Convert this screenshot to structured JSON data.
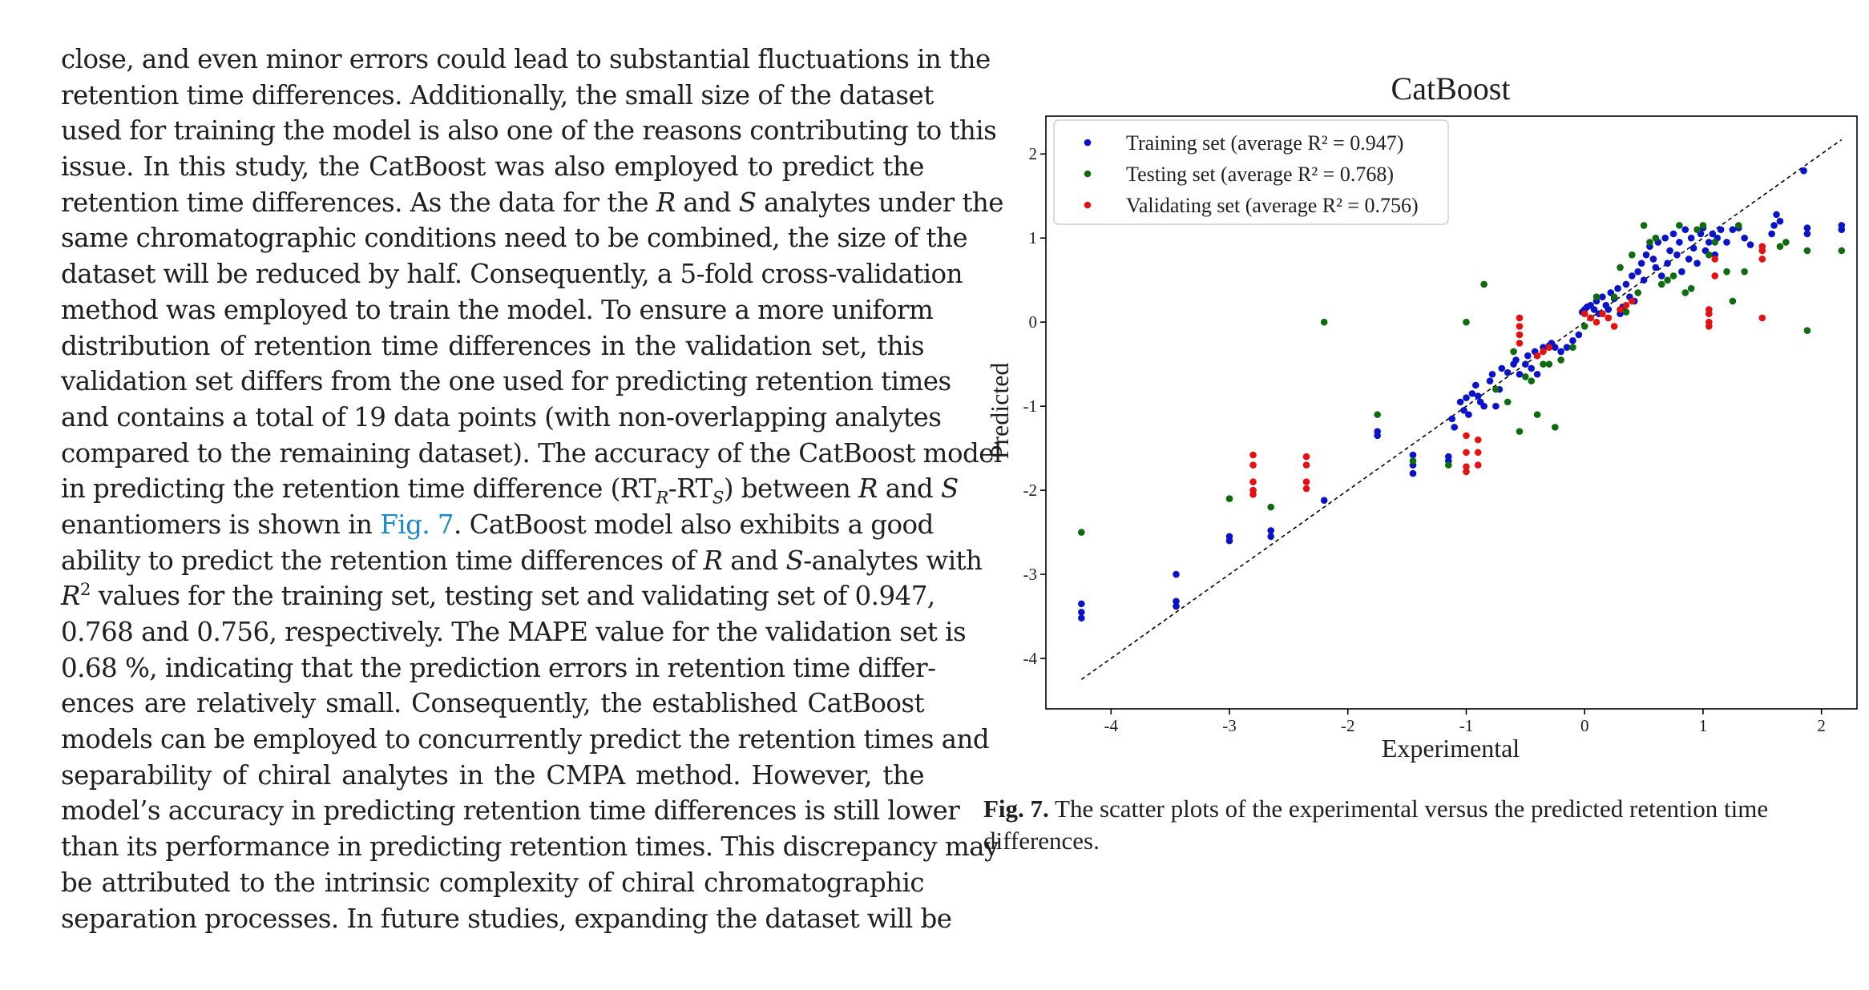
{
  "body_text": {
    "l1": "close, and even minor errors could lead to substantial fluctuations in the",
    "l2": "retention time differences. Additionally, the small size of the dataset",
    "l3": "used for training the model is also one of the reasons contributing to this",
    "l4": "issue. In this study, the CatBoost was also employed to predict the",
    "l5a": "retention time differences. As the data for the ",
    "l5b": "R",
    "l5c": " and ",
    "l5d": "S",
    "l5e": " analytes under the",
    "l6": "same chromatographic conditions need to be combined, the size of the",
    "l7": "dataset will be reduced by half. Consequently, a 5-fold cross-validation",
    "l8": "method was employed to train the model. To ensure a more uniform",
    "l9": "distribution of retention time differences in the validation set, this",
    "l10": "validation set differs from the one used for predicting retention times",
    "l11": "and contains a total of 19 data points (with non-overlapping analytes",
    "l12": "compared to the remaining dataset). The accuracy of the CatBoost model",
    "l13a": "in predicting the retention time difference (RT",
    "l13b": "R",
    "l13c": "-RT",
    "l13d": "S",
    "l13e": ") between ",
    "l13f": "R",
    "l13g": " and ",
    "l13h": "S",
    "l14a": "enantiomers is shown in ",
    "l14link": "Fig. 7",
    "l14b": ". CatBoost model also exhibits a good",
    "l15a": "ability to predict the retention time differences of ",
    "l15b": "R",
    "l15c": " and ",
    "l15d": "S",
    "l15e": "-analytes with",
    "l16a": "R",
    "l16b": "2",
    "l16c": " values for the training set, testing set and validating set of 0.947,",
    "l17": "0.768 and 0.756, respectively. The MAPE value for the validation set is",
    "l18": "0.68 %, indicating that the prediction errors in retention time differ-",
    "l19": "ences are relatively small. Consequently, the established CatBoost",
    "l20": "models can be employed to concurrently predict the retention times and",
    "l21": "separability of chiral analytes in the CMPA method. However, the",
    "l22": "model’s accuracy in predicting retention time differences is still lower",
    "l23": "than its performance in predicting retention times. This discrepancy may",
    "l24": "be attributed to the intrinsic complexity of chiral chromatographic",
    "l25": "separation processes. In future studies, expanding the dataset will be"
  },
  "caption": {
    "label": "Fig. 7.",
    "text": "  The scatter plots of the experimental versus the predicted retention time differences."
  },
  "chart_data": {
    "type": "scatter",
    "title": "CatBoost",
    "xlabel": "Experimental",
    "ylabel": "Predicted",
    "xlim": [
      -4.55,
      2.3
    ],
    "ylim": [
      -4.6,
      2.45
    ],
    "xticks": [
      -4,
      -3,
      -2,
      -1,
      0,
      1,
      2
    ],
    "yticks": [
      -4,
      -3,
      -2,
      -1,
      0,
      1,
      2
    ],
    "xtick_labels": [
      "-4",
      "-3",
      "-2",
      "-1",
      "0",
      "1",
      "2"
    ],
    "ytick_labels": [
      "-4",
      "-3",
      "-2",
      "-1",
      "0",
      "1",
      "2"
    ],
    "grid": false,
    "legend_position": "top-left",
    "reference_line": {
      "x": [
        -4.25,
        2.17
      ],
      "y": [
        -4.25,
        2.17
      ],
      "style": "dashed",
      "color": "#000000"
    },
    "series": [
      {
        "name": "Training set (average R² = 0.947)",
        "color": "#0a13c8",
        "points": [
          [
            -4.25,
            -3.35
          ],
          [
            -4.25,
            -3.45
          ],
          [
            -4.25,
            -3.52
          ],
          [
            -3.45,
            -3.0
          ],
          [
            -3.45,
            -3.32
          ],
          [
            -3.45,
            -3.38
          ],
          [
            -3.0,
            -2.55
          ],
          [
            -3.0,
            -2.6
          ],
          [
            -2.65,
            -2.48
          ],
          [
            -2.65,
            -2.55
          ],
          [
            -2.2,
            -2.12
          ],
          [
            -1.75,
            -1.3
          ],
          [
            -1.75,
            -1.35
          ],
          [
            -1.45,
            -1.58
          ],
          [
            -1.45,
            -1.7
          ],
          [
            -1.45,
            -1.8
          ],
          [
            -1.15,
            -1.6
          ],
          [
            -1.15,
            -1.65
          ],
          [
            -1.12,
            -1.15
          ],
          [
            -1.1,
            -1.25
          ],
          [
            -1.05,
            -0.95
          ],
          [
            -1.02,
            -1.05
          ],
          [
            -1.0,
            -0.9
          ],
          [
            -0.98,
            -1.1
          ],
          [
            -0.95,
            -0.85
          ],
          [
            -0.92,
            -0.75
          ],
          [
            -0.9,
            -0.88
          ],
          [
            -0.88,
            -0.95
          ],
          [
            -0.85,
            -1.0
          ],
          [
            -0.8,
            -0.7
          ],
          [
            -0.78,
            -0.62
          ],
          [
            -0.75,
            -1.0
          ],
          [
            -0.72,
            -0.8
          ],
          [
            -0.7,
            -0.55
          ],
          [
            -0.65,
            -0.6
          ],
          [
            -0.6,
            -0.5
          ],
          [
            -0.58,
            -0.45
          ],
          [
            -0.55,
            -0.62
          ],
          [
            -0.5,
            -0.5
          ],
          [
            -0.48,
            -0.4
          ],
          [
            -0.45,
            -0.55
          ],
          [
            -0.42,
            -0.35
          ],
          [
            -0.4,
            -0.62
          ],
          [
            -0.35,
            -0.3
          ],
          [
            -0.3,
            -0.28
          ],
          [
            -0.28,
            -0.25
          ],
          [
            -0.25,
            -0.3
          ],
          [
            -0.2,
            -0.35
          ],
          [
            -0.15,
            -0.3
          ],
          [
            -0.1,
            -0.22
          ],
          [
            -0.05,
            -0.15
          ],
          [
            -0.02,
            0.12
          ],
          [
            0.0,
            0.15
          ],
          [
            0.02,
            0.18
          ],
          [
            0.05,
            0.2
          ],
          [
            0.08,
            0.15
          ],
          [
            0.1,
            0.25
          ],
          [
            0.12,
            0.1
          ],
          [
            0.15,
            0.3
          ],
          [
            0.18,
            0.2
          ],
          [
            0.2,
            0.15
          ],
          [
            0.22,
            0.35
          ],
          [
            0.25,
            0.28
          ],
          [
            0.28,
            0.4
          ],
          [
            0.3,
            0.1
          ],
          [
            0.32,
            0.18
          ],
          [
            0.35,
            0.45
          ],
          [
            0.38,
            0.3
          ],
          [
            0.4,
            0.55
          ],
          [
            0.42,
            0.25
          ],
          [
            0.45,
            0.6
          ],
          [
            0.48,
            0.7
          ],
          [
            0.5,
            0.5
          ],
          [
            0.52,
            0.8
          ],
          [
            0.55,
            0.9
          ],
          [
            0.58,
            0.75
          ],
          [
            0.6,
            0.65
          ],
          [
            0.62,
            0.95
          ],
          [
            0.65,
            0.55
          ],
          [
            0.68,
            1.0
          ],
          [
            0.7,
            0.7
          ],
          [
            0.72,
            0.85
          ],
          [
            0.75,
            1.05
          ],
          [
            0.78,
            0.8
          ],
          [
            0.8,
            0.95
          ],
          [
            0.82,
            0.6
          ],
          [
            0.85,
            1.1
          ],
          [
            0.88,
            0.75
          ],
          [
            0.9,
            1.0
          ],
          [
            0.92,
            0.88
          ],
          [
            0.95,
            0.7
          ],
          [
            0.98,
            1.05
          ],
          [
            1.0,
            1.12
          ],
          [
            1.02,
            0.85
          ],
          [
            1.05,
            0.95
          ],
          [
            1.08,
            1.05
          ],
          [
            1.1,
            0.8
          ],
          [
            1.12,
            1.0
          ],
          [
            1.15,
            1.1
          ],
          [
            1.2,
            0.95
          ],
          [
            1.25,
            1.1
          ],
          [
            1.3,
            1.12
          ],
          [
            1.35,
            1.0
          ],
          [
            1.4,
            0.92
          ],
          [
            1.58,
            1.05
          ],
          [
            1.6,
            1.15
          ],
          [
            1.62,
            1.28
          ],
          [
            1.65,
            1.2
          ],
          [
            1.85,
            1.8
          ],
          [
            1.88,
            1.12
          ],
          [
            1.88,
            1.05
          ],
          [
            2.17,
            1.15
          ],
          [
            2.17,
            1.1
          ]
        ]
      },
      {
        "name": "Testing set (average R² = 0.768)",
        "color": "#0f6b0f",
        "points": [
          [
            -4.25,
            -2.5
          ],
          [
            -3.0,
            -2.1
          ],
          [
            -2.65,
            -2.2
          ],
          [
            -2.2,
            0.0
          ],
          [
            -1.75,
            -1.1
          ],
          [
            -1.45,
            -1.65
          ],
          [
            -1.15,
            -1.7
          ],
          [
            -1.0,
            0.0
          ],
          [
            -0.85,
            0.45
          ],
          [
            -0.75,
            -0.8
          ],
          [
            -0.65,
            -0.95
          ],
          [
            -0.6,
            -0.35
          ],
          [
            -0.55,
            -1.3
          ],
          [
            -0.5,
            -0.65
          ],
          [
            -0.45,
            -0.7
          ],
          [
            -0.4,
            -1.1
          ],
          [
            -0.35,
            -0.5
          ],
          [
            -0.3,
            -0.5
          ],
          [
            -0.25,
            -1.25
          ],
          [
            -0.2,
            -0.45
          ],
          [
            -0.1,
            -0.3
          ],
          [
            0.0,
            -0.05
          ],
          [
            0.05,
            0.05
          ],
          [
            0.1,
            0.3
          ],
          [
            0.15,
            0.1
          ],
          [
            0.2,
            0.05
          ],
          [
            0.25,
            0.3
          ],
          [
            0.3,
            0.65
          ],
          [
            0.35,
            0.12
          ],
          [
            0.4,
            0.8
          ],
          [
            0.45,
            0.35
          ],
          [
            0.5,
            1.15
          ],
          [
            0.55,
            0.95
          ],
          [
            0.6,
            1.0
          ],
          [
            0.65,
            0.45
          ],
          [
            0.7,
            0.5
          ],
          [
            0.75,
            0.55
          ],
          [
            0.8,
            1.15
          ],
          [
            0.85,
            0.35
          ],
          [
            0.9,
            0.4
          ],
          [
            0.95,
            1.1
          ],
          [
            1.0,
            1.15
          ],
          [
            1.05,
            0.8
          ],
          [
            1.1,
            0.95
          ],
          [
            1.2,
            0.6
          ],
          [
            1.25,
            0.25
          ],
          [
            1.3,
            1.15
          ],
          [
            1.35,
            0.6
          ],
          [
            1.65,
            0.9
          ],
          [
            1.7,
            0.95
          ],
          [
            1.88,
            -0.1
          ],
          [
            1.88,
            0.85
          ],
          [
            2.17,
            0.85
          ]
        ]
      },
      {
        "name": "Validating set (average R² = 0.756)",
        "color": "#e21212",
        "points": [
          [
            -2.8,
            -1.58
          ],
          [
            -2.8,
            -1.7
          ],
          [
            -2.8,
            -1.9
          ],
          [
            -2.8,
            -2.0
          ],
          [
            -2.8,
            -2.05
          ],
          [
            -2.35,
            -1.6
          ],
          [
            -2.35,
            -1.7
          ],
          [
            -2.35,
            -1.9
          ],
          [
            -2.35,
            -1.98
          ],
          [
            -1.0,
            -1.35
          ],
          [
            -1.0,
            -1.55
          ],
          [
            -1.0,
            -1.72
          ],
          [
            -1.0,
            -1.78
          ],
          [
            -0.9,
            -1.4
          ],
          [
            -0.9,
            -1.55
          ],
          [
            -0.9,
            -1.7
          ],
          [
            -0.55,
            -0.05
          ],
          [
            -0.55,
            -0.15
          ],
          [
            -0.55,
            -0.25
          ],
          [
            -0.55,
            0.05
          ],
          [
            -0.4,
            -0.4
          ],
          [
            -0.35,
            -0.35
          ],
          [
            -0.3,
            -0.3
          ],
          [
            0.0,
            0.1
          ],
          [
            0.05,
            0.05
          ],
          [
            0.1,
            0.0
          ],
          [
            0.15,
            0.1
          ],
          [
            0.2,
            0.05
          ],
          [
            0.25,
            -0.05
          ],
          [
            0.3,
            0.15
          ],
          [
            0.35,
            0.2
          ],
          [
            0.4,
            0.25
          ],
          [
            1.05,
            -0.05
          ],
          [
            1.05,
            0.0
          ],
          [
            1.05,
            0.1
          ],
          [
            1.05,
            0.15
          ],
          [
            1.1,
            0.55
          ],
          [
            1.1,
            0.75
          ],
          [
            1.5,
            0.75
          ],
          [
            1.5,
            0.85
          ],
          [
            1.5,
            0.9
          ],
          [
            1.5,
            0.05
          ]
        ]
      }
    ]
  }
}
